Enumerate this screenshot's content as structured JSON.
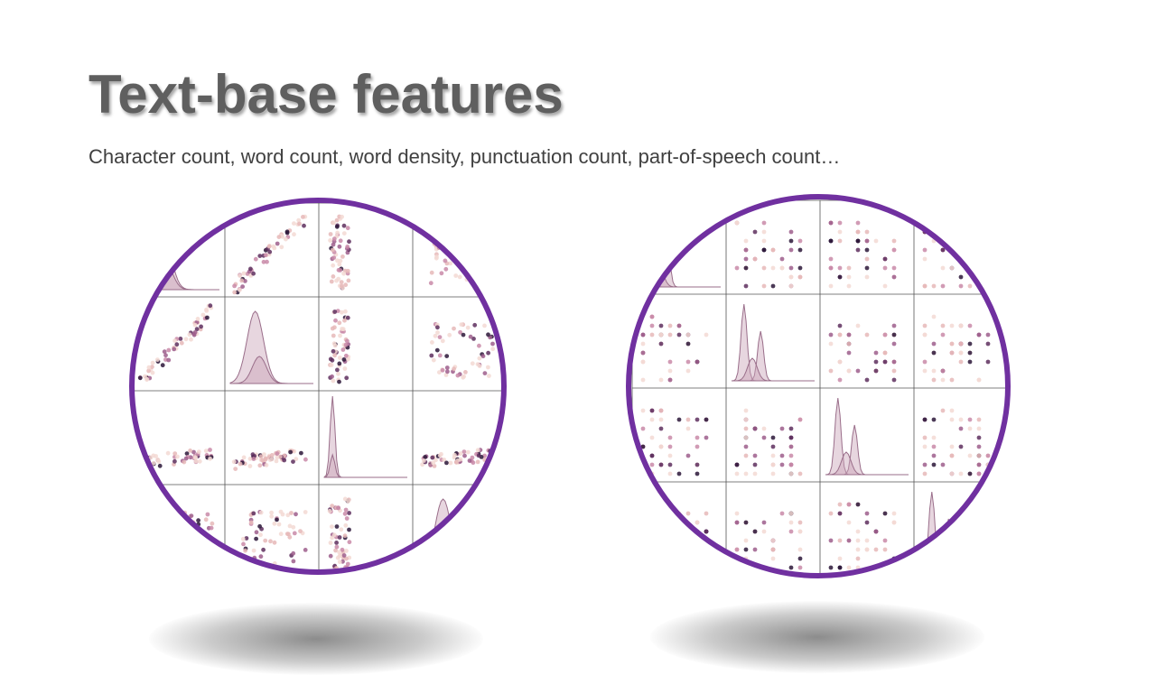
{
  "slide": {
    "title": "Text-base features",
    "subtitle": "Character count, word count, word density, punctuation count, part-of-speech count…"
  },
  "colors": {
    "ring": "#7030a0",
    "title": "#5f5f5f",
    "dot_palette": [
      "#f3d9d4",
      "#e6b8b8",
      "#c98aa8",
      "#9e5e8c",
      "#5e2f5e",
      "#2b1638"
    ],
    "kde_fill": "#c9a3b8",
    "kde_stroke": "#9a6e8a"
  }
}
